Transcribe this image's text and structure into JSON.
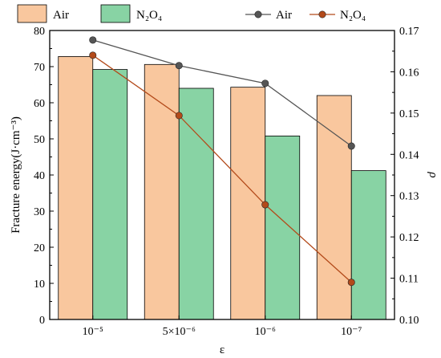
{
  "chart_data": {
    "type": "bar+line",
    "categories": [
      "10⁻⁵",
      "5×10⁻⁶",
      "10⁻⁶",
      "10⁻⁷"
    ],
    "bar_series": [
      {
        "name": "Air",
        "values": [
          72.8,
          70.6,
          64.3,
          62.0
        ],
        "color": "#F9C79E"
      },
      {
        "name": "N₂O₄",
        "values": [
          69.2,
          64.0,
          50.8,
          41.2
        ],
        "color": "#88D3A4"
      }
    ],
    "line_series": [
      {
        "name": "Air",
        "values": [
          0.1677,
          0.1615,
          0.1572,
          0.142
        ],
        "color": "#555555"
      },
      {
        "name": "N₂O₄",
        "values": [
          0.164,
          0.1494,
          0.1278,
          0.109
        ],
        "color": "#B34A1A"
      }
    ],
    "xlabel": "ε",
    "ylabel_left": "Fracture energy(J·cm⁻³)",
    "ylabel_right": "ρ",
    "ylim_left": [
      0,
      80
    ],
    "ylim_right": [
      0.1,
      0.17
    ],
    "yticks_left": [
      "0",
      "10",
      "20",
      "30",
      "40",
      "50",
      "60",
      "70",
      "80"
    ],
    "yticks_right": [
      "0.10",
      "0.11",
      "0.12",
      "0.13",
      "0.14",
      "0.15",
      "0.16",
      "0.17"
    ],
    "legend_bars": [
      "Air",
      "N₂O₄"
    ],
    "legend_lines": [
      "Air",
      "N₂O₄"
    ],
    "legend_placement": "top",
    "grid": false
  }
}
